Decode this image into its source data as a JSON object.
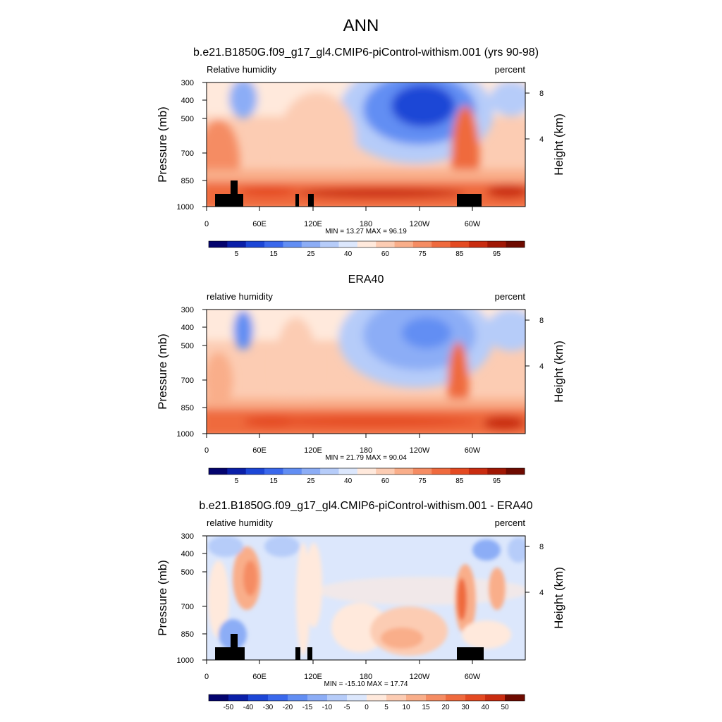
{
  "figure": {
    "title": "ANN"
  },
  "chart_data": [
    {
      "type": "heatmap",
      "title": "b.e21.B1850G.f09_g17_gl4.CMIP6-piControl-withism.001 (yrs 90-98)",
      "left_label": "Relative humidity",
      "right_label": "percent",
      "ylabel": "Pressure (mb)",
      "ylabel_right": "Height (km)",
      "x_ticks": [
        "0",
        "60E",
        "120E",
        "180",
        "120W",
        "60W"
      ],
      "y_ticks": [
        "300",
        "400",
        "500",
        "700",
        "850",
        "1000"
      ],
      "y_ticks_right": [
        "8",
        "4"
      ],
      "stats": "MIN =  13.27  MAX =  96.19",
      "colorbar_labels": [
        "5",
        "15",
        "25",
        "40",
        "60",
        "75",
        "85",
        "95"
      ],
      "colors": [
        "#03036e",
        "#0a1fa8",
        "#1c46d6",
        "#3a68ec",
        "#628ef3",
        "#8cadf6",
        "#b6ccf9",
        "#dce7fc",
        "#ffe9dc",
        "#fcccb3",
        "#f9ae8a",
        "#f58c63",
        "#ef6a3e",
        "#e44a22",
        "#c92c10",
        "#a01704",
        "#6e0a00"
      ]
    },
    {
      "type": "heatmap",
      "title": "ERA40",
      "left_label": "relative humidity",
      "right_label": "percent",
      "ylabel": "Pressure (mb)",
      "ylabel_right": "Height (km)",
      "x_ticks": [
        "0",
        "60E",
        "120E",
        "180",
        "120W",
        "60W"
      ],
      "y_ticks": [
        "300",
        "400",
        "500",
        "700",
        "850",
        "1000"
      ],
      "y_ticks_right": [
        "8",
        "4"
      ],
      "stats": "MIN =  21.79  MAX =  90.04",
      "colorbar_labels": [
        "5",
        "15",
        "25",
        "40",
        "60",
        "75",
        "85",
        "95"
      ],
      "colors": [
        "#03036e",
        "#0a1fa8",
        "#1c46d6",
        "#3a68ec",
        "#628ef3",
        "#8cadf6",
        "#b6ccf9",
        "#dce7fc",
        "#ffe9dc",
        "#fcccb3",
        "#f9ae8a",
        "#f58c63",
        "#ef6a3e",
        "#e44a22",
        "#c92c10",
        "#a01704",
        "#6e0a00"
      ]
    },
    {
      "type": "heatmap",
      "title": "b.e21.B1850G.f09_g17_gl4.CMIP6-piControl-withism.001 - ERA40",
      "left_label": "relative humidity",
      "right_label": "percent",
      "ylabel": "Pressure (mb)",
      "ylabel_right": "Height (km)",
      "x_ticks": [
        "0",
        "60E",
        "120E",
        "180",
        "120W",
        "60W"
      ],
      "y_ticks": [
        "300",
        "400",
        "500",
        "700",
        "850",
        "1000"
      ],
      "y_ticks_right": [
        "8",
        "4"
      ],
      "stats": "MIN = -15.10  MAX =  17.74",
      "colorbar_labels": [
        "-50",
        "-40",
        "-30",
        "-20",
        "-15",
        "-10",
        "-5",
        "0",
        "5",
        "10",
        "15",
        "20",
        "30",
        "40",
        "50"
      ],
      "colors": [
        "#03036e",
        "#0a1fa8",
        "#1c46d6",
        "#3a68ec",
        "#628ef3",
        "#8cadf6",
        "#b6ccf9",
        "#dce7fc",
        "#ffe9dc",
        "#fcccb3",
        "#f9ae8a",
        "#f58c63",
        "#ef6a3e",
        "#e44a22",
        "#c92c10",
        "#6e0a00"
      ]
    }
  ]
}
